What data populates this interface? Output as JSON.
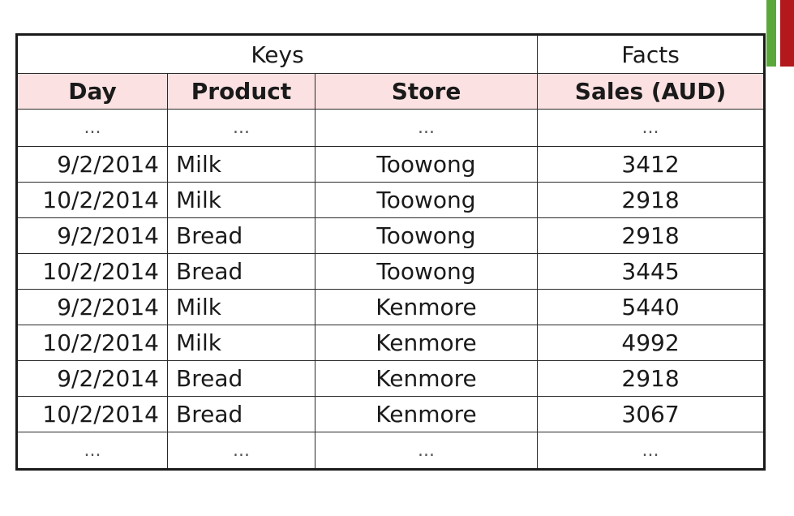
{
  "colors": {
    "accent_green": "#5aa83a",
    "accent_red": "#b3191c",
    "header_background": "#fbe1e1"
  },
  "table": {
    "groups": [
      {
        "label": "Keys",
        "span": 3
      },
      {
        "label": "Facts",
        "span": 1
      }
    ],
    "columns": [
      "Day",
      "Product",
      "Store",
      "Sales (AUD)"
    ],
    "ellipsis": "...",
    "rows": [
      [
        "9/2/2014",
        "Milk",
        "Toowong",
        "3412"
      ],
      [
        "10/2/2014",
        "Milk",
        "Toowong",
        "2918"
      ],
      [
        "9/2/2014",
        "Bread",
        "Toowong",
        "2918"
      ],
      [
        "10/2/2014",
        "Bread",
        "Toowong",
        "3445"
      ],
      [
        "9/2/2014",
        "Milk",
        "Kenmore",
        "5440"
      ],
      [
        "10/2/2014",
        "Milk",
        "Kenmore",
        "4992"
      ],
      [
        "9/2/2014",
        "Bread",
        "Kenmore",
        "2918"
      ],
      [
        "10/2/2014",
        "Bread",
        "Kenmore",
        "3067"
      ]
    ]
  }
}
